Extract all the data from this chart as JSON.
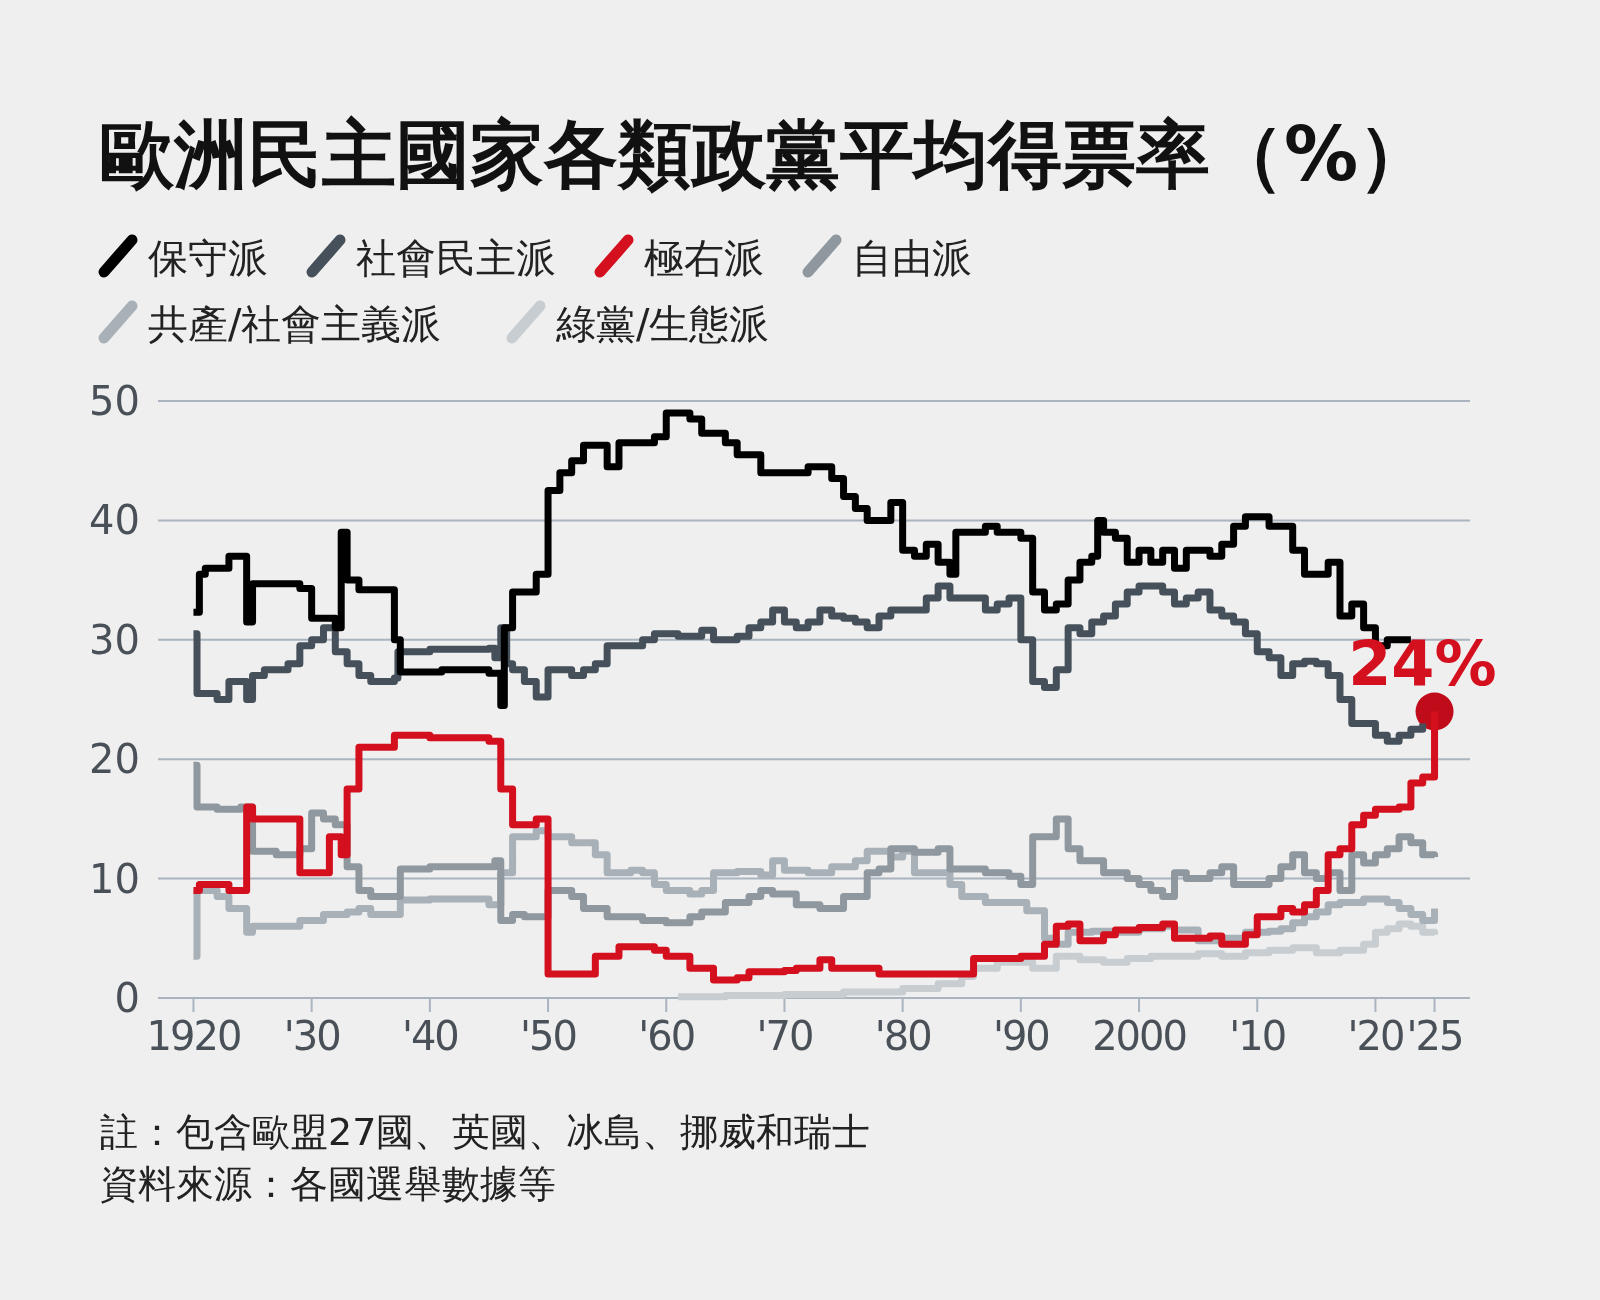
{
  "chart_data": {
    "type": "step",
    "title": "歐洲民主國家各類政黨平均得票率（%）",
    "xlim": [
      1917,
      2028
    ],
    "ylim": [
      0,
      50
    ],
    "yticks": [
      0,
      10,
      20,
      30,
      40,
      50
    ],
    "xticks": [
      {
        "value": 1920,
        "label": "1920"
      },
      {
        "value": 1930,
        "label": "'30"
      },
      {
        "value": 1940,
        "label": "'40"
      },
      {
        "value": 1950,
        "label": "'50"
      },
      {
        "value": 1960,
        "label": "'60"
      },
      {
        "value": 1970,
        "label": "'70"
      },
      {
        "value": 1980,
        "label": "'80"
      },
      {
        "value": 1990,
        "label": "'90"
      },
      {
        "value": 2000,
        "label": "2000"
      },
      {
        "value": 2010,
        "label": "'10"
      },
      {
        "value": 2020,
        "label": "'20"
      },
      {
        "value": 2025,
        "label": "'25"
      }
    ],
    "grid": "y",
    "legend": "top",
    "marker": "none",
    "line_style": "solid",
    "series": [
      {
        "name": "保守派",
        "color": "#000000",
        "x": [
          1920,
          1920.5,
          1921,
          1923,
          1924.5,
          1925,
          1929,
          1930,
          1932,
          1932.5,
          1933,
          1934,
          1937,
          1937.5,
          1941,
          1945,
          1946,
          1946.3,
          1947,
          1949,
          1950,
          1951,
          1952,
          1953,
          1955,
          1956,
          1959,
          1960,
          1962,
          1963,
          1965,
          1966,
          1968,
          1971,
          1972,
          1974,
          1975,
          1976,
          1977,
          1979,
          1980,
          1981,
          1982,
          1983,
          1984,
          1984.5,
          1986,
          1987,
          1988,
          1990,
          1991,
          1992,
          1993,
          1994,
          1995,
          1996,
          1996.5,
          1997,
          1998,
          1999,
          2000,
          2001,
          2002,
          2003,
          2004,
          2006,
          2007,
          2008,
          2009,
          2011,
          2013,
          2014,
          2016,
          2017,
          2018,
          2019,
          2020,
          2021,
          2022,
          2023
        ],
        "values": [
          32.3,
          35.5,
          36,
          37,
          31.5,
          34.7,
          34.3,
          31.8,
          31,
          39,
          35,
          34.2,
          30,
          27.3,
          27.5,
          27.2,
          24.5,
          31,
          34,
          35.5,
          42.5,
          44,
          45,
          46.3,
          44.5,
          46.5,
          47,
          49,
          48.5,
          47.3,
          46.5,
          45.5,
          44,
          44,
          44.5,
          43.5,
          42,
          41,
          40,
          41.5,
          37.5,
          37,
          38,
          36.5,
          35.5,
          39,
          39,
          39.5,
          39,
          38.5,
          34,
          32.5,
          33,
          35,
          36.5,
          37,
          40,
          39,
          38.5,
          36.5,
          37.5,
          36.5,
          37.5,
          36,
          37.5,
          37,
          38,
          39.5,
          40.3,
          39.5,
          37.5,
          35.5,
          36.5,
          32,
          33,
          31,
          29.5,
          30,
          30,
          30
        ]
      },
      {
        "name": "社會民主派",
        "color": "#46505a",
        "x": [
          1920,
          1920.3,
          1922,
          1923,
          1924.5,
          1925,
          1926,
          1928,
          1929,
          1930,
          1931,
          1932,
          1933,
          1934,
          1935,
          1937,
          1937.3,
          1940,
          1945,
          1945.5,
          1946,
          1946.5,
          1947,
          1948,
          1949,
          1950,
          1952,
          1953,
          1954,
          1955,
          1957,
          1958,
          1959,
          1961,
          1963,
          1964,
          1966,
          1967,
          1968,
          1969,
          1970,
          1971,
          1972,
          1973,
          1974,
          1975,
          1976,
          1977,
          1978,
          1979,
          1981,
          1982,
          1983,
          1984,
          1986,
          1987,
          1988,
          1989,
          1990,
          1991,
          1992,
          1993,
          1994,
          1995,
          1996,
          1997,
          1998,
          1999,
          2000,
          2002,
          2003,
          2004,
          2005,
          2006,
          2007,
          2008,
          2009,
          2010,
          2011,
          2012,
          2013,
          2014,
          2015,
          2016,
          2017,
          2018,
          2019,
          2020,
          2021,
          2022,
          2023,
          2024
        ],
        "values": [
          30.5,
          25.5,
          25,
          26.5,
          25,
          27,
          27.5,
          28,
          29.5,
          30,
          31,
          29,
          28,
          27,
          26.5,
          26.8,
          29,
          29.2,
          29.3,
          28.5,
          31,
          28,
          27.5,
          26.5,
          25.2,
          27.5,
          27,
          27.5,
          28,
          29.5,
          29.5,
          30,
          30.5,
          30.3,
          30.8,
          30,
          30.3,
          31,
          31.5,
          32.5,
          31.5,
          31,
          31.5,
          32.5,
          32,
          31.8,
          31.5,
          31,
          32,
          32.5,
          32.5,
          33.5,
          34.5,
          33.5,
          33.5,
          32.5,
          33,
          33.5,
          30,
          26.5,
          26,
          27.5,
          31,
          30.5,
          31.5,
          32,
          33,
          34,
          34.5,
          34,
          33,
          33.5,
          34,
          32.5,
          32,
          31.5,
          30.5,
          29,
          28.5,
          27,
          28,
          28.2,
          28,
          27,
          25,
          23,
          23,
          22,
          21.5,
          22,
          22.5,
          23
        ]
      },
      {
        "name": "極右派",
        "color": "#d40f1e",
        "x": [
          1920,
          1920.5,
          1923,
          1924.5,
          1925,
          1928,
          1929,
          1931,
          1931.5,
          1932.5,
          1933,
          1934,
          1936,
          1937,
          1940,
          1945,
          1946,
          1947,
          1949,
          1950,
          1953,
          1954,
          1956,
          1959,
          1960,
          1962,
          1964,
          1966,
          1967,
          1970,
          1971,
          1973,
          1974,
          1977,
          1978,
          1980,
          1983,
          1985,
          1986,
          1989,
          1990,
          1992,
          1993,
          1994,
          1995,
          1997,
          1998,
          2000,
          2002,
          2003,
          2005,
          2006,
          2007,
          2009,
          2010,
          2012,
          2013,
          2014,
          2015,
          2016,
          2017,
          2018,
          2019,
          2020,
          2022,
          2023,
          2024,
          2025
        ],
        "values": [
          9,
          9.5,
          9,
          16,
          15,
          15,
          10.5,
          10.5,
          13.5,
          12,
          17.5,
          21,
          21,
          22,
          21.8,
          21.5,
          17.5,
          14.5,
          15,
          2,
          2,
          3.5,
          4.3,
          4,
          3.5,
          2.5,
          1.5,
          1.7,
          2.2,
          2.3,
          2.5,
          3.2,
          2.5,
          2.5,
          2,
          2,
          2,
          2,
          3.3,
          3.3,
          3.5,
          4.5,
          6,
          6.2,
          4.8,
          5.3,
          5.7,
          5.9,
          6.2,
          5,
          5,
          5.2,
          4.5,
          5.3,
          6.8,
          7.5,
          7.2,
          7.8,
          9,
          12,
          12.5,
          14.5,
          15.3,
          15.8,
          16,
          18,
          18.5,
          24
        ]
      },
      {
        "name": "自由派",
        "color": "#8f989f",
        "x": [
          1920,
          1920.3,
          1922,
          1924,
          1925,
          1927,
          1929,
          1930,
          1931,
          1932,
          1933,
          1934,
          1935,
          1937,
          1937.5,
          1940,
          1945,
          1945.5,
          1946,
          1947,
          1948,
          1950,
          1952,
          1953,
          1955,
          1958,
          1960,
          1962,
          1963,
          1965,
          1967,
          1968,
          1969,
          1971,
          1973,
          1975,
          1977,
          1978,
          1979,
          1981,
          1983,
          1984,
          1987,
          1989,
          1990,
          1991,
          1993,
          1994,
          1995,
          1997,
          1999,
          2000,
          2001,
          2002,
          2003,
          2004,
          2006,
          2007,
          2008,
          2009,
          2011,
          2012,
          2013,
          2014,
          2015,
          2016,
          2017,
          2018,
          2019,
          2020,
          2021,
          2022,
          2023,
          2024,
          2025
        ],
        "values": [
          19.5,
          16,
          15.8,
          16,
          12.3,
          12,
          12.5,
          15.5,
          15,
          14.5,
          11,
          9,
          8.5,
          8.5,
          10.8,
          11,
          11,
          11.5,
          6.5,
          7,
          6.8,
          9,
          8.5,
          7.5,
          6.8,
          6.5,
          6.3,
          6.8,
          7.2,
          8,
          8.5,
          9,
          8.7,
          7.8,
          7.5,
          8.5,
          10.5,
          10.8,
          12.5,
          12.2,
          12.5,
          10.8,
          10.5,
          10.2,
          9.5,
          13.5,
          15,
          12.5,
          11.5,
          10.5,
          10,
          9.5,
          9,
          8.5,
          10.5,
          10,
          10.5,
          11,
          9.5,
          9.5,
          10,
          11,
          12,
          10.5,
          10,
          10.5,
          9,
          12,
          11.3,
          12,
          12.5,
          13.5,
          13,
          12,
          11.8
        ]
      },
      {
        "name": "共產/社會主義派",
        "color": "#a9b1b8",
        "x": [
          1920,
          1920.3,
          1922,
          1923,
          1924.5,
          1925,
          1929,
          1931,
          1933,
          1934,
          1935,
          1937,
          1937.5,
          1940,
          1945,
          1946,
          1947,
          1949,
          1950,
          1952,
          1954,
          1955,
          1957,
          1958,
          1959,
          1960,
          1962,
          1963,
          1964,
          1966,
          1968,
          1969,
          1970,
          1972,
          1974,
          1976,
          1977,
          1979,
          1980,
          1981,
          1984,
          1985,
          1987,
          1990,
          1990.5,
          1992,
          1993,
          1994,
          1996,
          1998,
          2000,
          2002,
          2003,
          2005,
          2007,
          2009,
          2011,
          2012,
          2013,
          2014,
          2015,
          2016,
          2017,
          2019,
          2021,
          2022,
          2023,
          2024,
          2025
        ],
        "values": [
          3.5,
          9,
          8.5,
          7.5,
          5.5,
          6,
          6.5,
          7,
          7.2,
          7.5,
          7,
          7,
          8.2,
          8.3,
          7.8,
          10.5,
          13.5,
          14,
          13.5,
          13,
          12,
          10.5,
          10.7,
          10.5,
          9.5,
          9,
          8.7,
          9,
          10.5,
          10.6,
          10.3,
          11.5,
          10.7,
          10.5,
          11,
          11.5,
          12.3,
          11.8,
          12.3,
          10.5,
          9.5,
          8.5,
          8,
          8,
          7.3,
          5,
          4.5,
          5.5,
          5.6,
          5.5,
          5.8,
          6,
          5.7,
          4.8,
          5,
          5.5,
          5.6,
          5.8,
          6.3,
          6.8,
          7.2,
          7.8,
          8,
          8.3,
          8,
          7.5,
          7,
          6.5,
          7.5
        ]
      },
      {
        "name": "綠黨/生態派",
        "color": "#c8cdd1",
        "x": [
          1961,
          1965,
          1970,
          1975,
          1980,
          1983,
          1985,
          1986,
          1988,
          1991,
          1993,
          1995,
          1997,
          1999,
          2001,
          2005,
          2007,
          2009,
          2011,
          2013,
          2015,
          2017,
          2019,
          2020,
          2021,
          2022,
          2023,
          2024,
          2025
        ],
        "values": [
          0.1,
          0.2,
          0.3,
          0.5,
          0.8,
          1.2,
          1.8,
          2.5,
          3,
          2.5,
          3.5,
          3.2,
          3,
          3.3,
          3.5,
          3.7,
          3.5,
          3.8,
          4,
          4.2,
          3.8,
          4,
          4.5,
          5.5,
          5.8,
          6.2,
          6,
          5.5,
          5.3
        ]
      }
    ],
    "annotations": [
      {
        "text": "24%",
        "x": 2025,
        "y": 24
      },
      "註：包含歐盟27國、英國、冰島、挪威和瑞士",
      "資料來源：各國選舉數據等"
    ]
  }
}
